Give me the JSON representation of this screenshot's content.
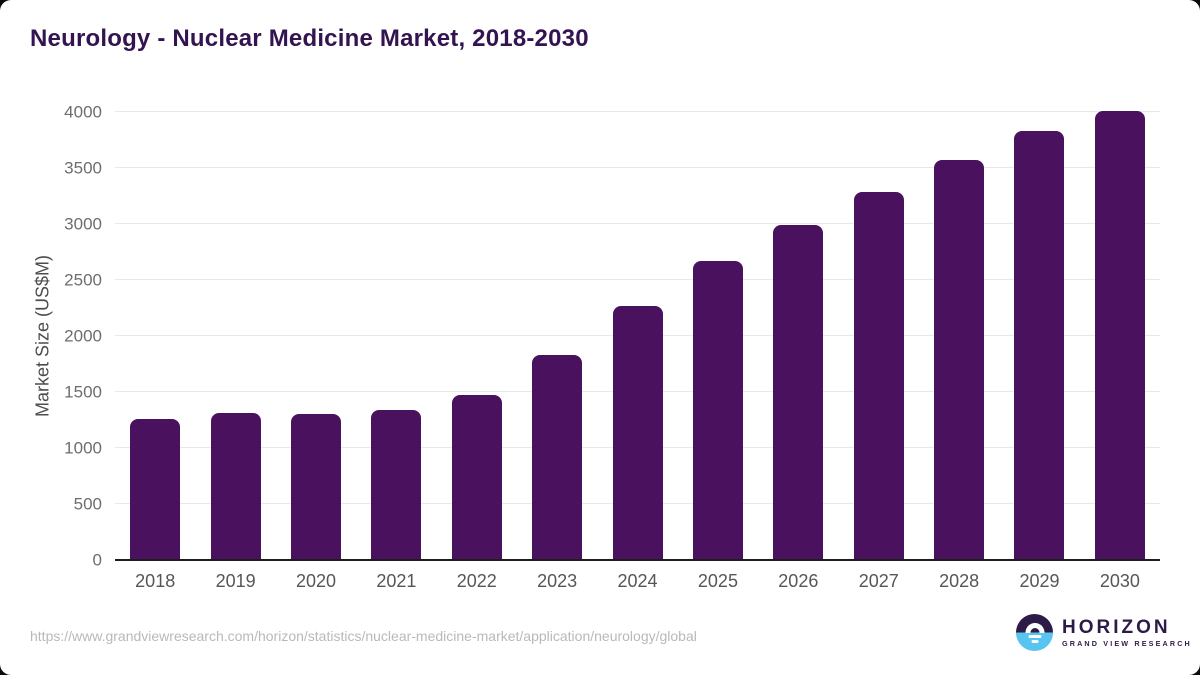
{
  "header": {
    "title": "Neurology - Nuclear Medicine Market, 2018-2030"
  },
  "chart_data": {
    "type": "bar",
    "title": "Neurology - Nuclear Medicine Market, 2018-2030",
    "categories": [
      "2018",
      "2019",
      "2020",
      "2021",
      "2022",
      "2023",
      "2024",
      "2025",
      "2026",
      "2027",
      "2028",
      "2029",
      "2030"
    ],
    "values": [
      1260,
      1310,
      1300,
      1340,
      1470,
      1830,
      2270,
      2670,
      2990,
      3290,
      3570,
      3830,
      4010
    ],
    "xlabel": "",
    "ylabel": "Market Size (US$M)",
    "ylim": [
      0,
      4000
    ],
    "yticks": [
      0,
      500,
      1000,
      1500,
      2000,
      2500,
      3000,
      3500,
      4000
    ],
    "grid": "horizontal",
    "legend": "none"
  },
  "colors": {
    "bar": "#4a115e",
    "title": "#331450",
    "grid": "#e8e8e8",
    "axis_line": "#1d1d1d",
    "ytick_text": "#6e6e6e",
    "xtick_text": "#565656",
    "yaxis_title_text": "#4d4d4d",
    "url_text": "#b9b9b9",
    "logo_purple": "#2e1a47",
    "logo_blue": "#58c4f0",
    "page_bg": "#0c0a10",
    "card_bg": "#ffffff"
  },
  "footer": {
    "source_url": "https://www.grandviewresearch.com/horizon/statistics/nuclear-medicine-market/application/neurology/global",
    "logo": {
      "brand": "HORIZON",
      "sub_brand": "GRAND VIEW RESEARCH"
    }
  }
}
